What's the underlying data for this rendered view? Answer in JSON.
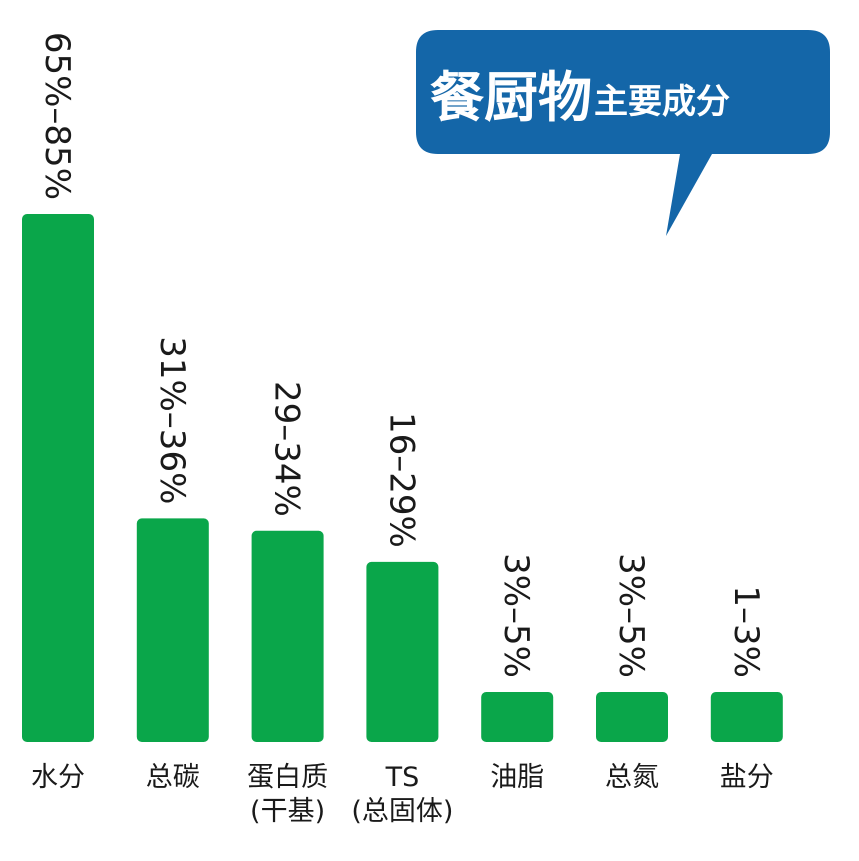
{
  "chart_data": {
    "type": "bar",
    "title_main": "餐厨物",
    "title_sub": "主要成分",
    "categories": [
      [
        "水分"
      ],
      [
        "总碳"
      ],
      [
        "蛋白质",
        "(干基)"
      ],
      [
        "TS",
        "(总固体)"
      ],
      [
        "油脂"
      ],
      [
        "总氮"
      ],
      [
        "盐分"
      ]
    ],
    "values": [
      85,
      36,
      34,
      29,
      5,
      5,
      3
    ],
    "value_labels": [
      "65%–85%",
      "31%–36%",
      "29–34%",
      "16–29%",
      "3%–5%",
      "3%–5%",
      "1–3%"
    ],
    "ylim": [
      0,
      85
    ],
    "grid": false,
    "colors": {
      "bar": "#0aa64a",
      "bubble": "#1466a8",
      "text": "#1a1a1a"
    }
  }
}
